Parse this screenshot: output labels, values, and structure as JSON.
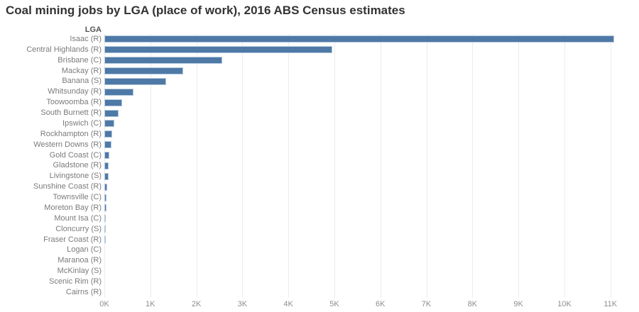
{
  "column_header": "LGA",
  "colors": {
    "bar": "#4e79a7",
    "bar_border": "#b4c8dd",
    "gridline": "#ececec",
    "title_text": "#333333",
    "label_text": "#7b7b7b",
    "tick_text": "#8e8e8e",
    "header_text": "#545454",
    "background": "#ffffff"
  },
  "chart_data": {
    "type": "bar",
    "orientation": "horizontal",
    "title": "Coal mining jobs by LGA (place of work), 2016 ABS Census estimates",
    "xlabel": "",
    "ylabel": "LGA",
    "xlim": [
      0,
      11560
    ],
    "grid": true,
    "legend": false,
    "x_ticks": [
      {
        "label": "0K",
        "value": 0
      },
      {
        "label": "1K",
        "value": 1000
      },
      {
        "label": "2K",
        "value": 2000
      },
      {
        "label": "3K",
        "value": 3000
      },
      {
        "label": "4K",
        "value": 4000
      },
      {
        "label": "5K",
        "value": 5000
      },
      {
        "label": "6K",
        "value": 6000
      },
      {
        "label": "7K",
        "value": 7000
      },
      {
        "label": "8K",
        "value": 8000
      },
      {
        "label": "9K",
        "value": 9000
      },
      {
        "label": "10K",
        "value": 10000
      },
      {
        "label": "11K",
        "value": 11000
      }
    ],
    "categories": [
      "Isaac (R)",
      "Central Highlands (R)",
      "Brisbane (C)",
      "Mackay (R)",
      "Banana (S)",
      "Whitsunday (R)",
      "Toowoomba (R)",
      "South Burnett (R)",
      "Ipswich (C)",
      "Rockhampton (R)",
      "Western Downs (R)",
      "Gold Coast (C)",
      "Gladstone (R)",
      "Livingstone (S)",
      "Sunshine Coast (R)",
      "Townsville (C)",
      "Moreton Bay (R)",
      "Mount Isa (C)",
      "Cloncurry (S)",
      "Fraser Coast (R)",
      "Logan (C)",
      "Maranoa (R)",
      "McKinlay (S)",
      "Scenic Rim (R)",
      "Cairns (R)"
    ],
    "values": [
      11080,
      4950,
      2560,
      1710,
      1340,
      630,
      380,
      310,
      215,
      170,
      155,
      115,
      95,
      85,
      60,
      45,
      40,
      30,
      25,
      15,
      10,
      8,
      6,
      5,
      4
    ]
  }
}
